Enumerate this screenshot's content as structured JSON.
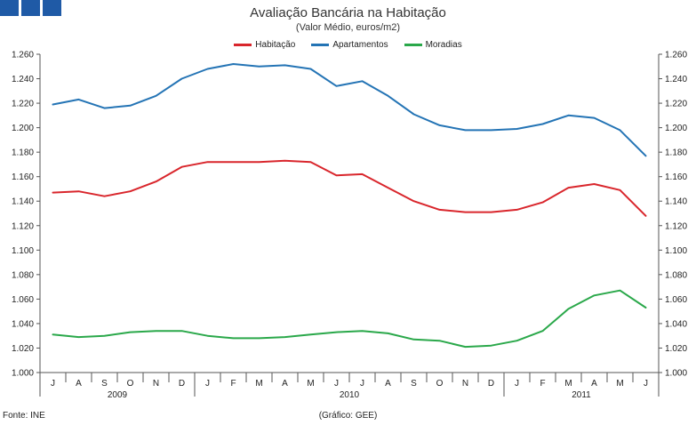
{
  "chart_data": {
    "type": "line",
    "title": "Avaliação Bancária na Habitação",
    "subtitle": "(Valor Médio, euros/m2)",
    "ylim": [
      1000,
      1260
    ],
    "ytick_step": 20,
    "y_tick_labels": [
      "1.000",
      "1.020",
      "1.040",
      "1.060",
      "1.080",
      "1.100",
      "1.120",
      "1.140",
      "1.160",
      "1.180",
      "1.200",
      "1.220",
      "1.240",
      "1.260"
    ],
    "categories": [
      "J",
      "A",
      "S",
      "O",
      "N",
      "D",
      "J",
      "F",
      "M",
      "A",
      "M",
      "J",
      "J",
      "A",
      "S",
      "O",
      "N",
      "D",
      "J",
      "F",
      "M",
      "A",
      "M",
      "J"
    ],
    "year_labels": [
      {
        "label": "2009",
        "start": 0,
        "end": 5
      },
      {
        "label": "2010",
        "start": 6,
        "end": 17
      },
      {
        "label": "2011",
        "start": 18,
        "end": 23
      }
    ],
    "series": [
      {
        "name": "Habitação",
        "color": "#d9262c",
        "values": [
          1147,
          1148,
          1144,
          1148,
          1156,
          1168,
          1172,
          1172,
          1172,
          1173,
          1172,
          1161,
          1162,
          1151,
          1140,
          1133,
          1131,
          1131,
          1133,
          1139,
          1151,
          1154,
          1149,
          1128
        ]
      },
      {
        "name": "Apartamentos",
        "color": "#2474b5",
        "values": [
          1219,
          1223,
          1216,
          1218,
          1226,
          1240,
          1248,
          1252,
          1250,
          1251,
          1248,
          1234,
          1238,
          1226,
          1211,
          1202,
          1198,
          1198,
          1199,
          1203,
          1210,
          1208,
          1198,
          1177
        ]
      },
      {
        "name": "Moradias",
        "color": "#2aa84a",
        "values": [
          1031,
          1029,
          1030,
          1033,
          1034,
          1034,
          1030,
          1028,
          1028,
          1029,
          1031,
          1033,
          1034,
          1032,
          1027,
          1026,
          1021,
          1022,
          1026,
          1034,
          1052,
          1063,
          1067,
          1053
        ]
      }
    ],
    "legend_position": "top-center",
    "grid": false
  },
  "logo_color": "#1f5aa6",
  "source": "Fonte: INE",
  "credit": "(Gráfico: GEE)"
}
